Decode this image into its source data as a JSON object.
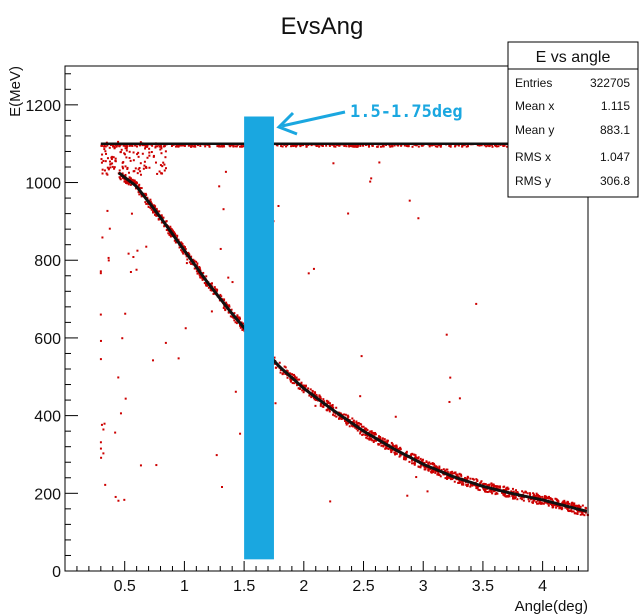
{
  "chart_data": {
    "type": "scatter",
    "title": "EvsAng",
    "xlabel": "Angle(deg)",
    "ylabel": "E(MeV)",
    "xlim": [
      0.0,
      4.38
    ],
    "ylim": [
      0,
      1300
    ],
    "xticks": [
      0.5,
      1,
      1.5,
      2,
      2.5,
      3,
      3.5,
      4
    ],
    "xtick_labels": [
      "0.5",
      "1",
      "1.5",
      "2",
      "2.5",
      "3",
      "3.5",
      "4"
    ],
    "yticks": [
      0,
      200,
      400,
      600,
      800,
      1000,
      1200
    ],
    "ytick_labels": [
      "0",
      "200",
      "400",
      "600",
      "800",
      "1000",
      "1200"
    ],
    "grid": false,
    "marker_color": "#cc0000",
    "line_color": "#111111",
    "series": [
      {
        "x": [
          0.45,
          0.6,
          0.8,
          1.0,
          1.2,
          1.4,
          1.6,
          1.8,
          2.0,
          2.25,
          2.5,
          2.75,
          3.0,
          3.25,
          3.5,
          3.75,
          4.0,
          4.25,
          4.38
        ],
        "y": [
          1025,
          990,
          910,
          825,
          740,
          662,
          590,
          525,
          470,
          413,
          360,
          315,
          275,
          243,
          218,
          199,
          183,
          163,
          153
        ]
      },
      {
        "x": [
          0.3,
          4.38
        ],
        "y": [
          1100,
          1100
        ]
      }
    ],
    "stats_box": {
      "title": "E vs angle",
      "rows": [
        {
          "label": "Entries",
          "value": "322705"
        },
        {
          "label": "Mean x",
          "value": "1.115"
        },
        {
          "label": "Mean y",
          "value": "883.1"
        },
        {
          "label": "RMS x",
          "value": "1.047"
        },
        {
          "label": "RMS y",
          "value": "306.8"
        }
      ]
    },
    "annotation": {
      "text": "1.5-1.75deg",
      "color": "#1aa7e0",
      "band_x": [
        1.5,
        1.75
      ],
      "band_y": [
        30,
        1170
      ]
    }
  }
}
